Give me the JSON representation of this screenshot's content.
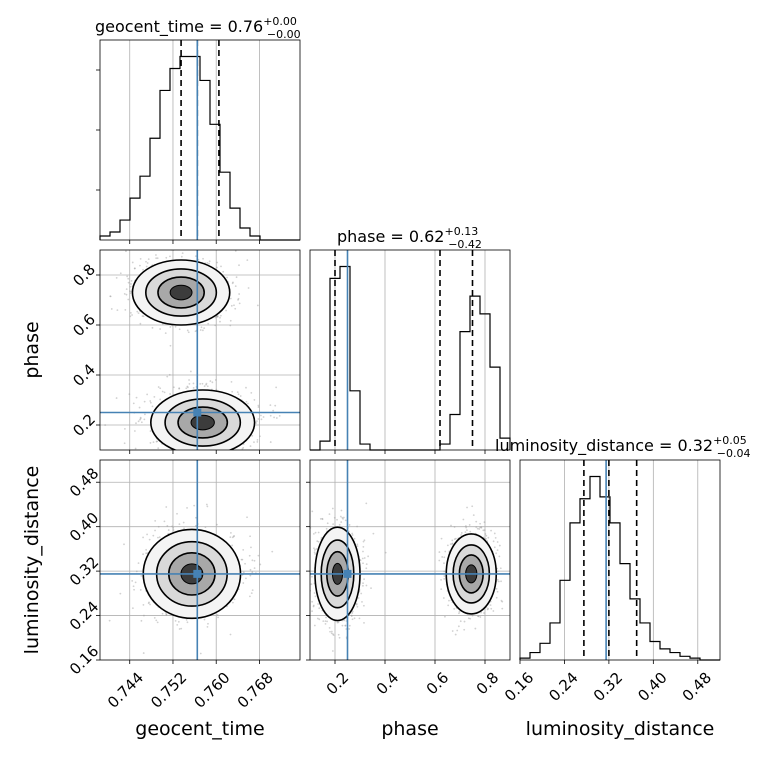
{
  "chart_data": {
    "type": "corner",
    "parameters": [
      "geocent_time",
      "phase",
      "luminosity_distance"
    ],
    "truth": {
      "geocent_time": 0.7565,
      "phase": 0.25,
      "luminosity_distance": 0.315
    },
    "truth_color": "#4682b4",
    "hist_color": "#000000",
    "titles": [
      {
        "param": "geocent_time",
        "text": "geocent_time = 0.76",
        "sup": "+0.00",
        "sub": "−0.00"
      },
      {
        "param": "phase",
        "text": "phase = 0.62",
        "sup": "+0.13",
        "sub": "−0.42"
      },
      {
        "param": "luminosity_distance",
        "text": "luminosity_distance = 0.32",
        "sup": "+0.05",
        "sub": "−0.04"
      }
    ],
    "axes": {
      "geocent_time": {
        "range": [
          0.7385,
          0.7755
        ],
        "ticks": [
          "0.744",
          "0.752",
          "0.760",
          "0.768"
        ],
        "tick_values": [
          0.744,
          0.752,
          0.76,
          0.768
        ]
      },
      "phase": {
        "range": [
          0.1,
          0.9
        ],
        "ticks": [
          "0.2",
          "0.4",
          "0.6",
          "0.8"
        ],
        "tick_values": [
          0.2,
          0.4,
          0.6,
          0.8
        ]
      },
      "luminosity_distance": {
        "range": [
          0.16,
          0.52
        ],
        "ticks": [
          "0.16",
          "0.24",
          "0.32",
          "0.40",
          "0.48"
        ],
        "tick_values": [
          0.16,
          0.24,
          0.32,
          0.4,
          0.48
        ]
      }
    },
    "histograms": {
      "geocent_time": {
        "bins_start": 0.7385,
        "bin_width": 0.00185,
        "counts": [
          0.02,
          0.04,
          0.1,
          0.21,
          0.32,
          0.51,
          0.75,
          0.86,
          0.92,
          0.92,
          0.8,
          0.58,
          0.34,
          0.16,
          0.06,
          0.02,
          0.0,
          0.0,
          0.0,
          0.0
        ],
        "quantiles": [
          0.7535,
          0.7565,
          0.7605
        ]
      },
      "phase": {
        "bins_start": 0.1,
        "bin_width": 0.04,
        "counts": [
          0.0,
          0.03,
          0.58,
          0.62,
          0.2,
          0.02,
          0.0,
          0.0,
          0.0,
          0.0,
          0.0,
          0.0,
          0.0,
          0.02,
          0.12,
          0.4,
          0.52,
          0.46,
          0.28,
          0.04
        ],
        "quantiles": [
          0.2,
          0.62,
          0.75
        ]
      },
      "luminosity_distance": {
        "bins_start": 0.16,
        "bin_width": 0.018,
        "counts": [
          0.01,
          0.04,
          0.09,
          0.2,
          0.43,
          0.74,
          0.87,
          0.99,
          0.88,
          0.74,
          0.52,
          0.33,
          0.2,
          0.1,
          0.06,
          0.04,
          0.02,
          0.01,
          0.0,
          0.0
        ],
        "quantiles": [
          0.275,
          0.32,
          0.37
        ]
      }
    },
    "scatter_2d": [
      {
        "x": "geocent_time",
        "y": "phase",
        "blobs": [
          {
            "cx": 0.7535,
            "cy": 0.73,
            "sx": 0.0045,
            "sy": 0.065
          },
          {
            "cx": 0.7575,
            "cy": 0.21,
            "sx": 0.0048,
            "sy": 0.065
          }
        ]
      },
      {
        "x": "geocent_time",
        "y": "luminosity_distance",
        "blobs": [
          {
            "cx": 0.7555,
            "cy": 0.315,
            "sx": 0.0045,
            "sy": 0.04
          }
        ]
      },
      {
        "x": "phase",
        "y": "luminosity_distance",
        "blobs": [
          {
            "cx": 0.21,
            "cy": 0.315,
            "sx": 0.045,
            "sy": 0.042
          },
          {
            "cx": 0.745,
            "cy": 0.315,
            "sx": 0.05,
            "sy": 0.036
          }
        ]
      }
    ]
  }
}
